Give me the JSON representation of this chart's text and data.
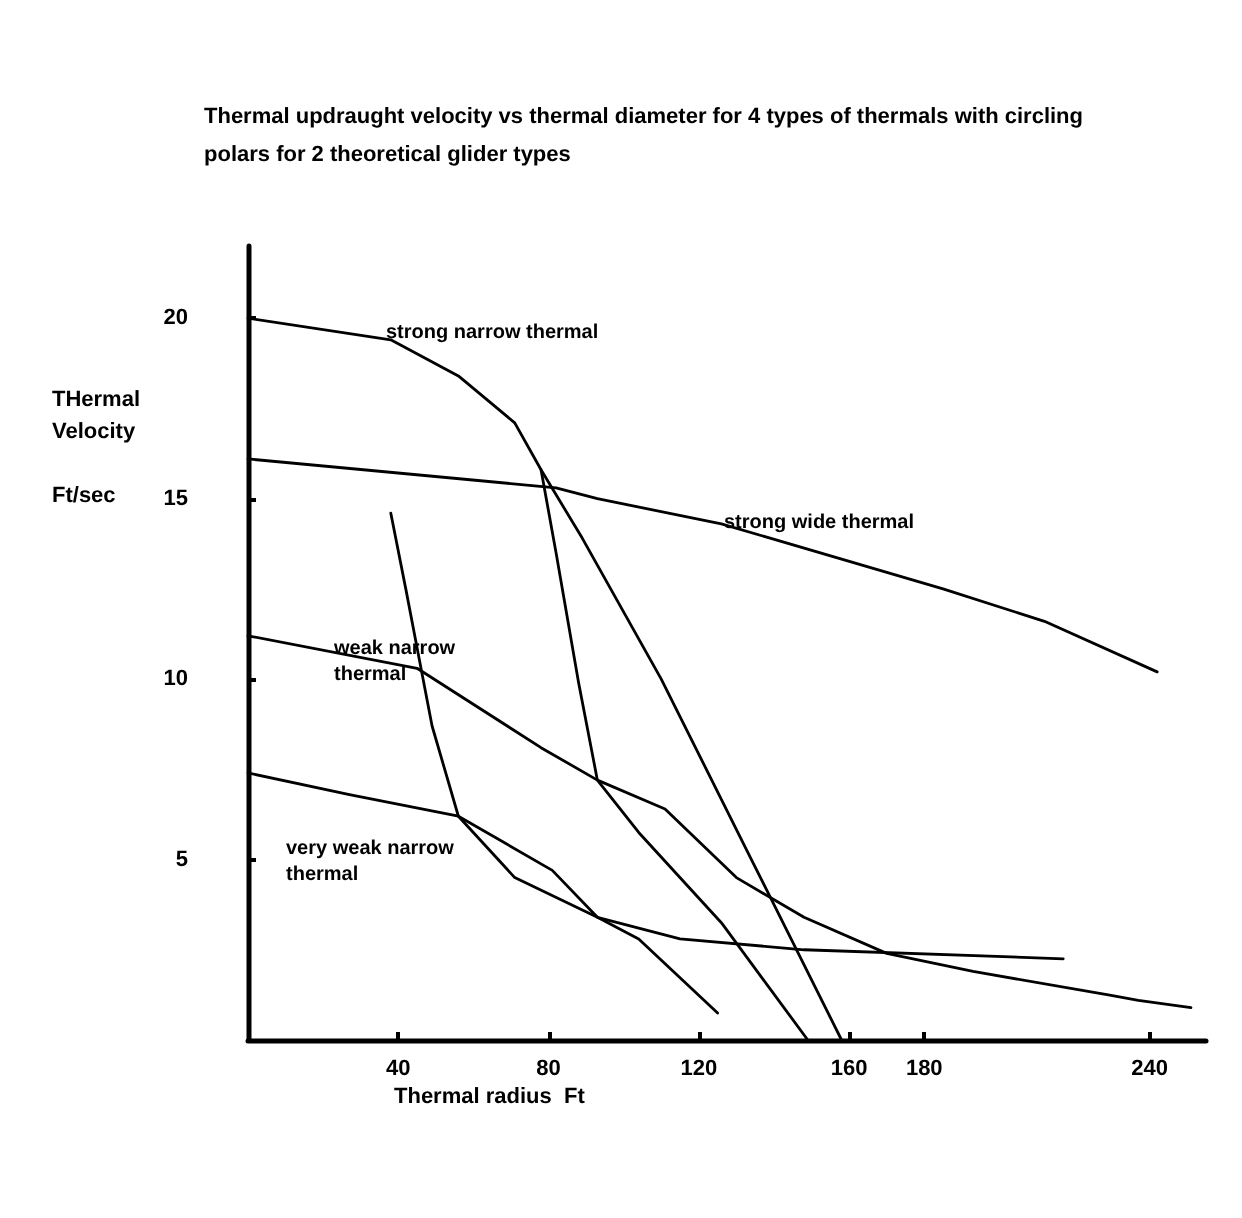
{
  "chart_data": {
    "type": "line",
    "title": "Thermal updraught velocity vs thermal diameter for 4 types of thermals with circling polars for 2 theoretical glider types",
    "xlabel": "Thermal radius  Ft",
    "ylabel": "THermal\nVelocity\n\nFt/sec",
    "series": [
      {
        "color": "#000000",
        "x": [
          0,
          38,
          56,
          71,
          78,
          89,
          110,
          134,
          158
        ],
        "values": [
          20,
          19.4,
          18.4,
          17.1,
          15.8,
          13.9,
          10,
          5,
          0
        ]
      },
      {
        "color": "#000000",
        "x": [
          0,
          82,
          93,
          126,
          185,
          212,
          242
        ],
        "values": [
          16.1,
          15.3,
          15,
          14.3,
          12.5,
          11.6,
          10.2
        ]
      },
      {
        "color": "#000000",
        "x": [
          0,
          45,
          78,
          93,
          104,
          126,
          149
        ],
        "values": [
          11.2,
          10.3,
          8.1,
          7.2,
          5.75,
          3.25,
          0
        ]
      },
      {
        "color": "#000000",
        "x": [
          0,
          27,
          56,
          81,
          93,
          104,
          125
        ],
        "values": [
          7.4,
          6.8,
          6.2,
          4.7,
          3.4,
          2.8,
          0.75
        ]
      },
      {
        "color": "#000000",
        "x": [
          38,
          42,
          45.5,
          49,
          56,
          71,
          93,
          115,
          148,
          217
        ],
        "values": [
          14.6,
          12.5,
          10.6,
          8.7,
          6.2,
          4.5,
          3.4,
          2.8,
          2.5,
          2.25
        ]
      },
      {
        "color": "#000000",
        "x": [
          78,
          82,
          88,
          93,
          111,
          130,
          148,
          170,
          193,
          229,
          237,
          251
        ],
        "values": [
          15.8,
          13.5,
          9.9,
          7.2,
          6.4,
          4.5,
          3.4,
          2.4,
          1.9,
          1.25,
          1.1,
          0.9
        ]
      }
    ],
    "annotations": [
      "strong narrow thermal",
      "strong wide thermal",
      "weak narrow\nthermal",
      "very weak narrow\nthermal"
    ],
    "xlim": [
      0,
      255
    ],
    "ylim": [
      0,
      22
    ],
    "xticks": [
      40,
      80,
      120,
      160,
      180,
      240
    ],
    "yticks": [
      5,
      10,
      15,
      20
    ],
    "grid": false,
    "marker": "none",
    "line_style": "solid"
  }
}
